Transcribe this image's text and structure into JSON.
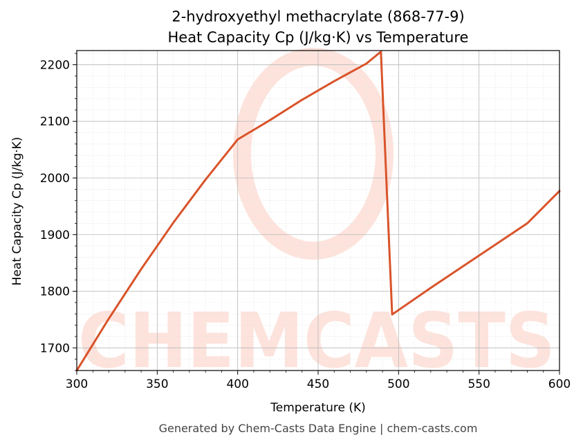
{
  "chart_data": {
    "type": "line",
    "title": "2-hydroxyethyl methacrylate (868-77-9)",
    "subtitle": "Heat Capacity Cp (J/kg·K) vs Temperature",
    "xlabel": "Temperature (K)",
    "ylabel": "Heat Capacity Cp (J/kg·K)",
    "xlim": [
      300,
      600
    ],
    "ylim": [
      1660,
      2225
    ],
    "xticks": [
      300,
      350,
      400,
      450,
      500,
      550,
      600
    ],
    "yticks": [
      1700,
      1800,
      1900,
      2000,
      2100,
      2200
    ],
    "grid": true,
    "series": [
      {
        "color": "#d9532a",
        "x": [
          300,
          320,
          340,
          360,
          380,
          400,
          420,
          440,
          460,
          480,
          489,
          496,
          520,
          540,
          560,
          580,
          600
        ],
        "y": [
          1660,
          1752,
          1839,
          1921,
          1997,
          2068,
          2102,
          2138,
          2171,
          2202,
          2223,
          1759,
          1806,
          1844,
          1882,
          1920,
          1977
        ]
      }
    ]
  },
  "watermark": {
    "text": "CHEMCASTS",
    "color": "#fde3dc"
  },
  "footer": {
    "text": "Generated by Chem-Casts Data Engine | chem-casts.com"
  }
}
